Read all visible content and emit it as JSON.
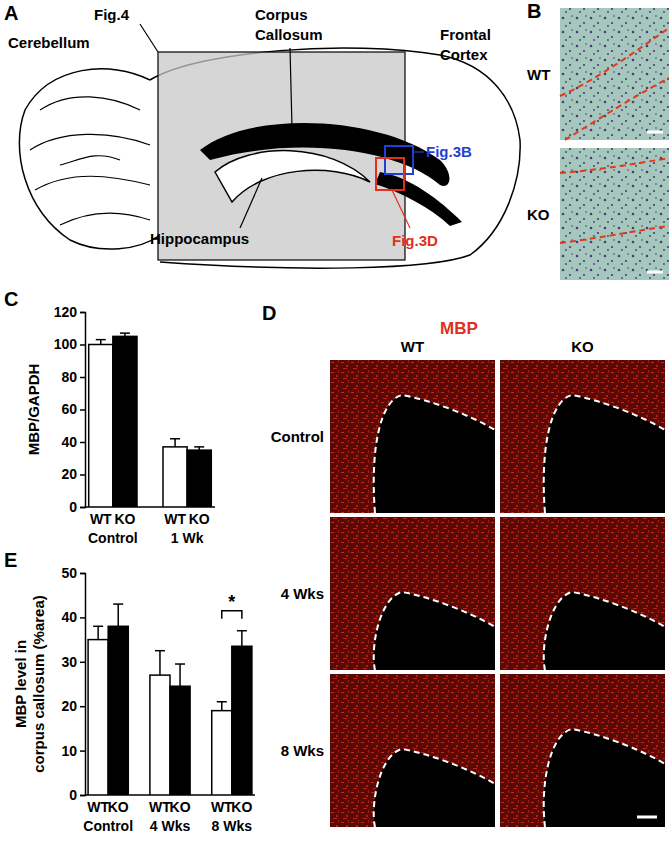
{
  "chart_data": [
    {
      "type": "bar",
      "title": "C",
      "y_label": "MBP/GAPDH",
      "categories": [
        "Control",
        "1 Wk"
      ],
      "series": [
        {
          "name": "WT",
          "color": "#ffffff",
          "values": [
            100,
            37
          ],
          "errors": [
            3,
            5
          ]
        },
        {
          "name": "KO",
          "color": "#000000",
          "values": [
            105,
            35
          ],
          "errors": [
            2,
            2
          ]
        }
      ],
      "ylim": [
        0,
        120
      ],
      "yticks": [
        0,
        20,
        40,
        60,
        80,
        100,
        120
      ]
    },
    {
      "type": "bar",
      "title": "E",
      "y_label": [
        "MBP level in",
        "corpus callosum (%area)"
      ],
      "categories": [
        "Control",
        "4 Wks",
        "8 Wks"
      ],
      "series": [
        {
          "name": "WT",
          "color": "#ffffff",
          "values": [
            35,
            27,
            19
          ],
          "errors": [
            3,
            5.5,
            2
          ]
        },
        {
          "name": "KO",
          "color": "#000000",
          "values": [
            38,
            24.5,
            33.5
          ],
          "errors": [
            5,
            5,
            3.5
          ]
        }
      ],
      "ylim": [
        0,
        50
      ],
      "yticks": [
        0,
        10,
        20,
        30,
        40,
        50
      ],
      "annotations": [
        {
          "text": "*",
          "category": 2
        }
      ]
    }
  ],
  "panel_a": {
    "label": "A",
    "labels": [
      "Fig.4",
      "Corpus Callosum",
      "Frontal Cortex",
      "Cerebellum",
      "Hippocampus",
      "Fig.3B",
      "Fig.3D"
    ]
  },
  "panel_b": {
    "label": "B",
    "rows": [
      "WT",
      "KO"
    ]
  },
  "panel_d": {
    "label": "D",
    "stain": "MBP",
    "columns": [
      "WT",
      "KO"
    ],
    "rows": [
      "Control",
      "4 Wks",
      "8 Wks"
    ]
  }
}
